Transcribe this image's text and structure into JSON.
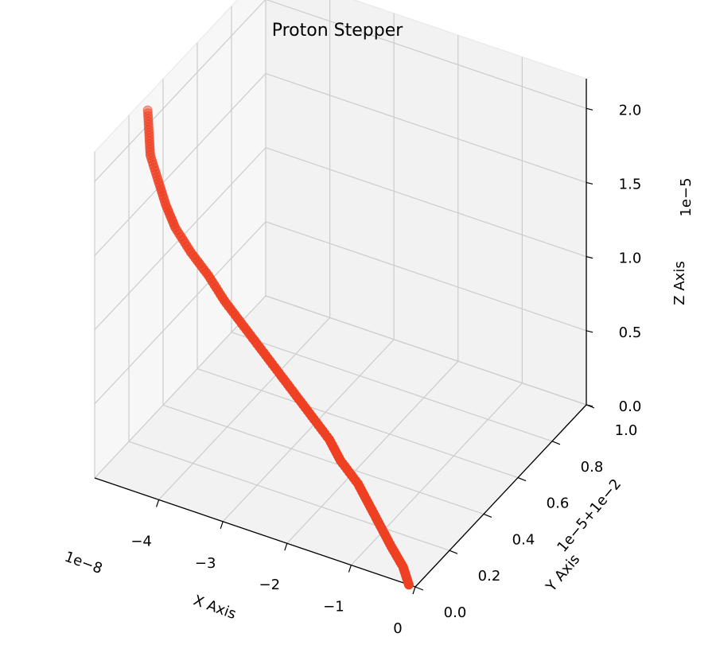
{
  "chart_data": {
    "type": "scatter3d",
    "title": "Proton Stepper",
    "xlabel": "X Axis",
    "ylabel": "Y Axis",
    "zlabel": "Z Axis",
    "x_offset_label": "1e−8",
    "y_offset_label": "1e−5+1e−2",
    "z_offset_label": "1e−5",
    "x_ticks": [
      "−4",
      "−3",
      "−2",
      "−1",
      "0"
    ],
    "y_ticks": [
      "0.0",
      "0.2",
      "0.4",
      "0.6",
      "0.8",
      "1.0"
    ],
    "z_ticks": [
      "0.0",
      "0.5",
      "1.0",
      "1.5",
      "2.0"
    ],
    "x_range": [
      -5e-08,
      0.0
    ],
    "y_range": [
      0.01,
      0.0100001
    ],
    "z_range": [
      0.0,
      2.2e-05
    ],
    "grid": true,
    "marker_color": "#ee4022",
    "series": [
      {
        "points": [
          [
            -1e-09,
            0.01,
            0.0
          ],
          [
            -2e-09,
            0.0100000004,
            1e-06
          ],
          [
            -4e-09,
            0.010000001,
            2e-06
          ],
          [
            -6e-09,
            0.010000002,
            3e-06
          ],
          [
            -8e-09,
            0.010000003,
            4e-06
          ],
          [
            -1e-08,
            0.010000004,
            5e-06
          ],
          [
            -1.3e-08,
            0.010000005,
            6e-06
          ],
          [
            -1.5e-08,
            0.010000006,
            7e-06
          ],
          [
            -1.8e-08,
            0.010000007,
            8e-06
          ],
          [
            -2.1e-08,
            0.010000008,
            9e-06
          ],
          [
            -2.4e-08,
            0.010000009,
            1e-05
          ],
          [
            -2.7e-08,
            0.01000001,
            1.1e-05
          ],
          [
            -3e-08,
            0.010000011,
            1.2e-05
          ],
          [
            -3.3e-08,
            0.010000012,
            1.3e-05
          ],
          [
            -3.6e-08,
            0.010000014,
            1.4e-05
          ],
          [
            -3.9e-08,
            0.010000015,
            1.5e-05
          ],
          [
            -4.2e-08,
            0.010000017,
            1.6e-05
          ],
          [
            -4.4e-08,
            0.010000019,
            1.7e-05
          ],
          [
            -4.6e-08,
            0.010000022,
            1.8e-05
          ],
          [
            -4.8e-08,
            0.010000025,
            1.9e-05
          ],
          [
            -4.9e-08,
            0.010000028,
            2e-05
          ],
          [
            -5e-08,
            0.010000031,
            2.1e-05
          ]
        ]
      }
    ]
  }
}
